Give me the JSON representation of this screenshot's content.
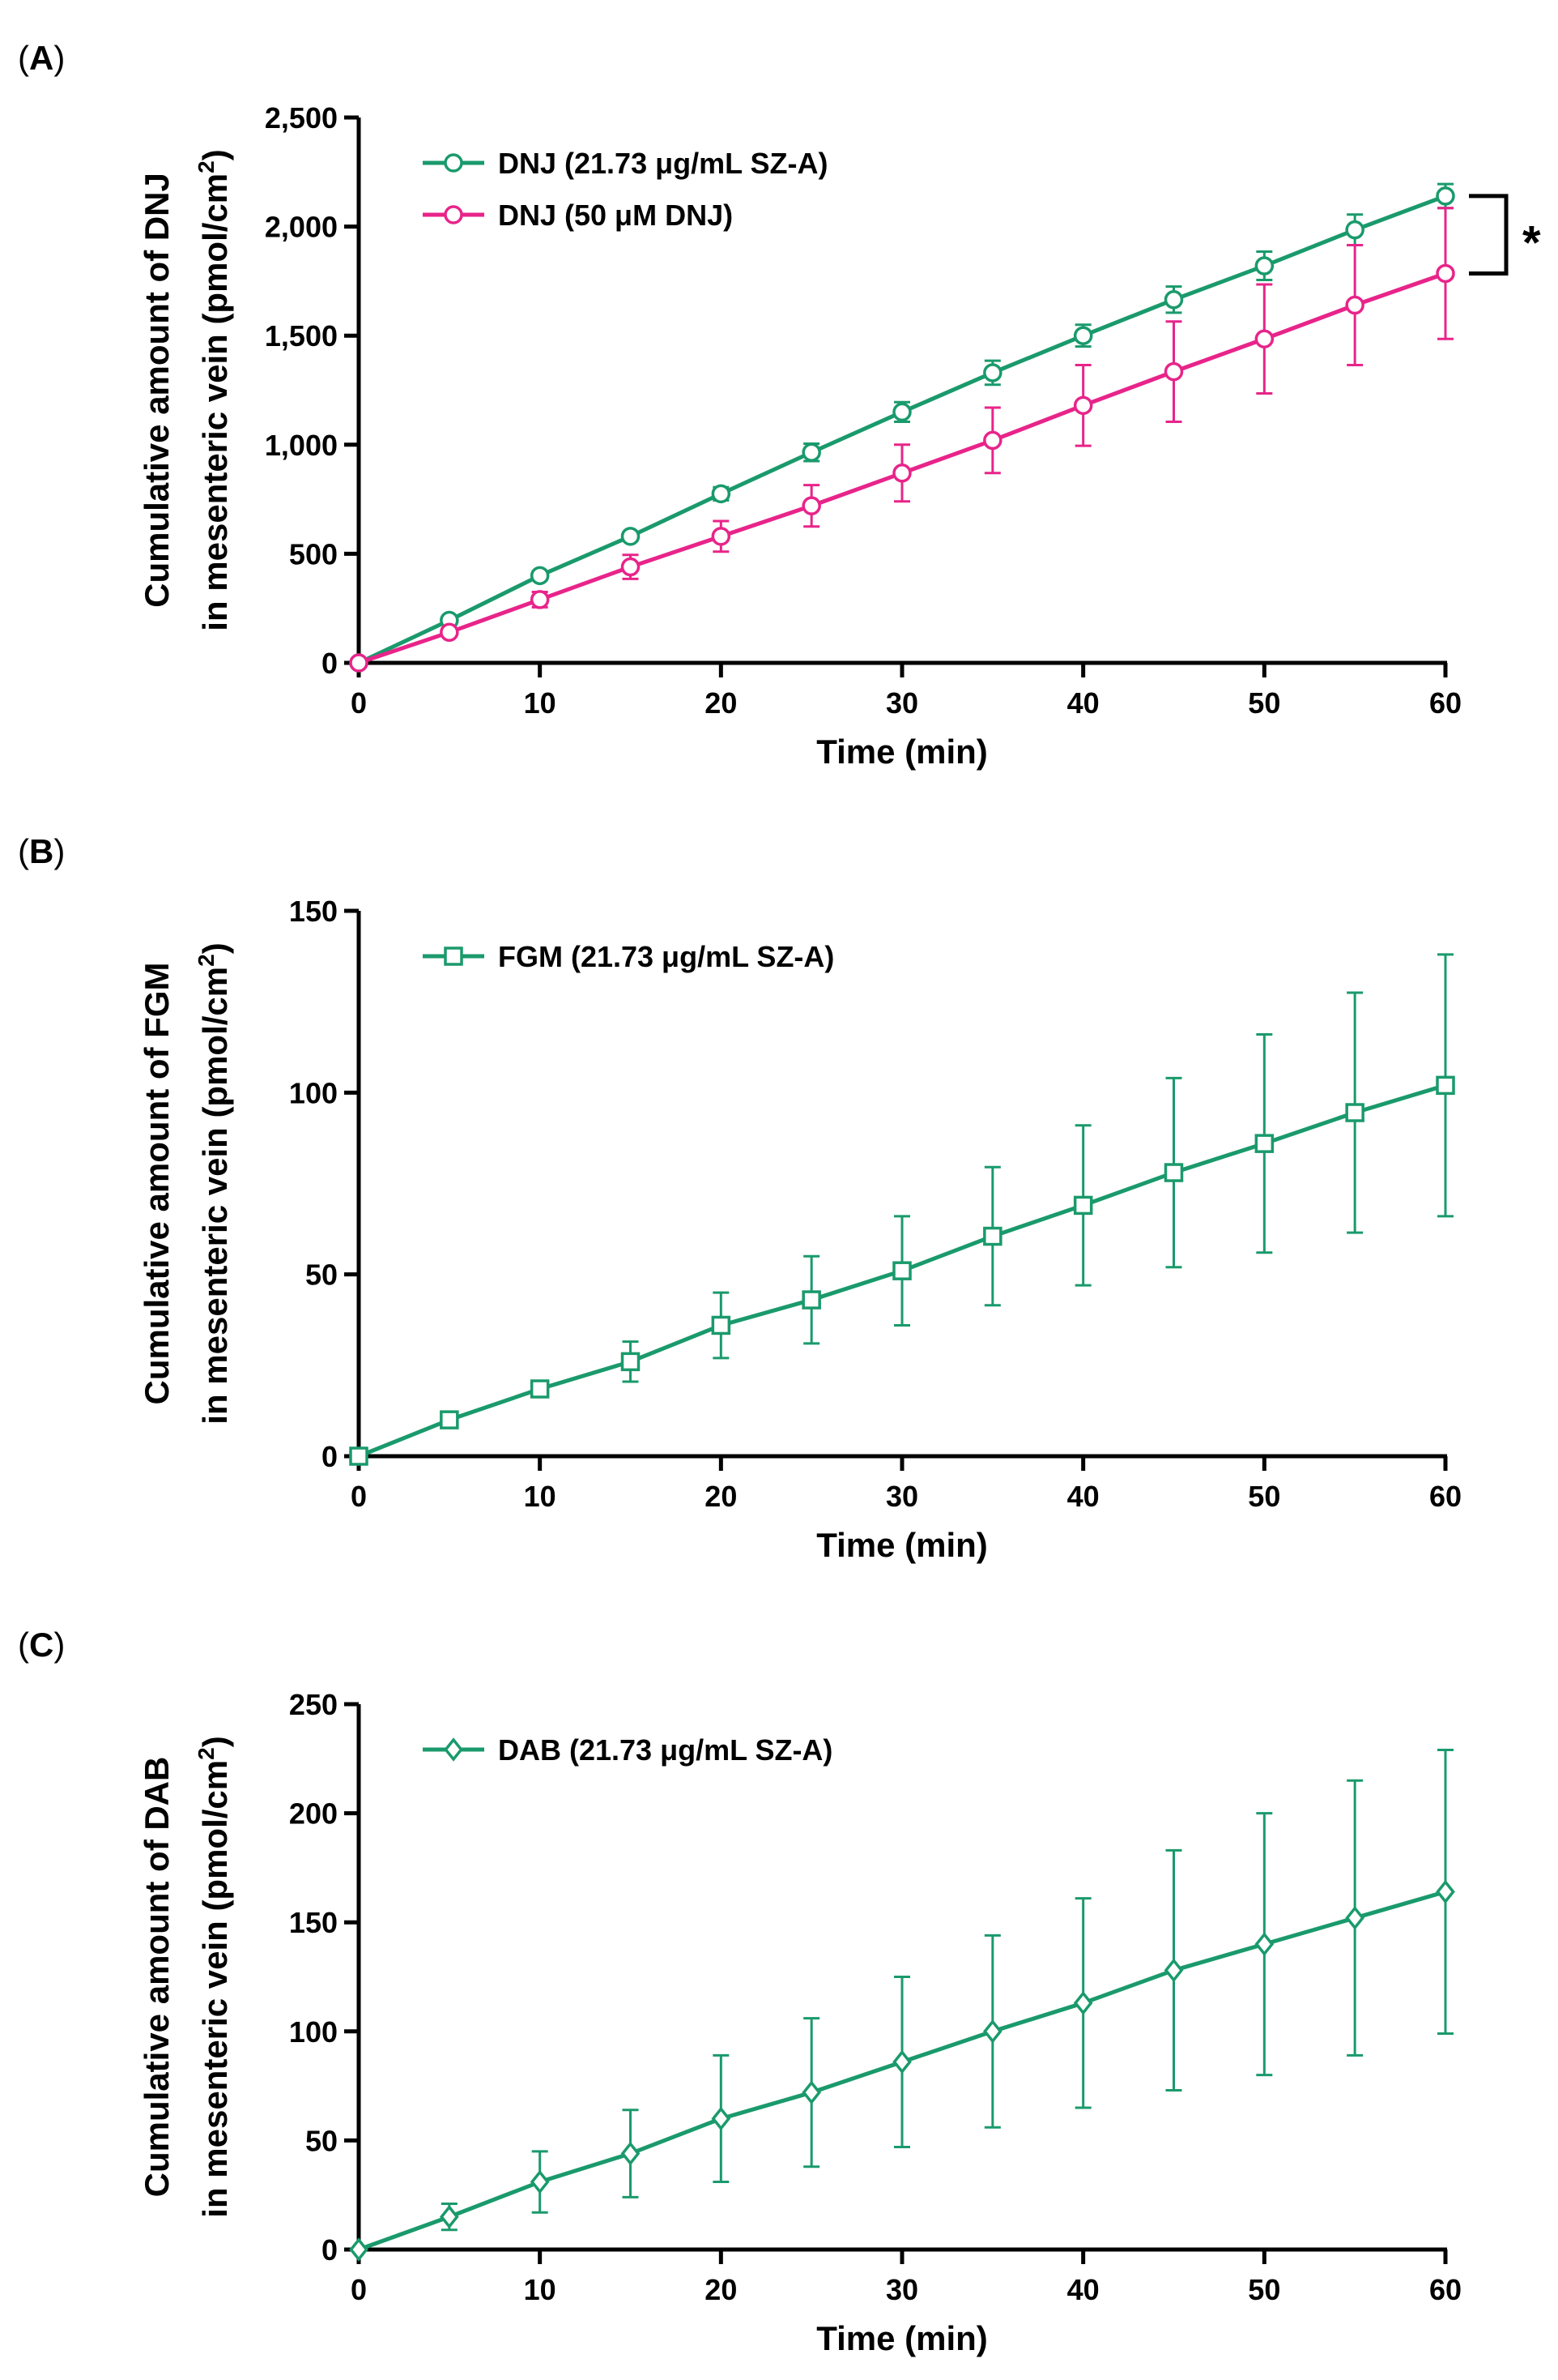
{
  "chart_data": [
    {
      "panel": "(A)",
      "panel_letter": "A",
      "type": "line",
      "x": [
        0,
        5,
        10,
        15,
        20,
        25,
        30,
        35,
        40,
        45,
        50,
        55,
        60
      ],
      "xlabel": "Time (min)",
      "ylabel_line1": "Cumulative amount of DNJ",
      "ylabel_line2": "in mesenteric vein (pmol/cm",
      "ylabel_sup": "2",
      "ylabel_close": ")",
      "xlim": [
        0,
        60
      ],
      "ylim": [
        0,
        2500
      ],
      "xticks": [
        0,
        10,
        20,
        30,
        40,
        50,
        60
      ],
      "xtick_labels": [
        "0",
        "10",
        "20",
        "30",
        "40",
        "50",
        "60"
      ],
      "yticks": [
        0,
        500,
        1000,
        1500,
        2000,
        2500
      ],
      "ytick_labels": [
        "0",
        "500",
        "1,000",
        "1,500",
        "2,000",
        "2,500"
      ],
      "annotation": "*",
      "series": [
        {
          "name": "DNJ (21.73 μg/mL SZ-A)",
          "color": "#1a9a6c",
          "marker": "circle",
          "values": [
            0,
            195,
            400,
            580,
            775,
            965,
            1150,
            1330,
            1500,
            1665,
            1820,
            1985,
            2140
          ],
          "errors": [
            0,
            15,
            20,
            20,
            30,
            40,
            45,
            55,
            50,
            60,
            65,
            70,
            55
          ]
        },
        {
          "name": "DNJ (50 μM DNJ)",
          "color": "#e8248a",
          "marker": "circle",
          "values": [
            0,
            140,
            290,
            440,
            580,
            720,
            870,
            1020,
            1180,
            1335,
            1485,
            1640,
            1785
          ],
          "errors": [
            0,
            15,
            35,
            55,
            70,
            95,
            130,
            150,
            185,
            230,
            250,
            275,
            300
          ]
        }
      ]
    },
    {
      "panel": "(B)",
      "panel_letter": "B",
      "type": "line",
      "x": [
        0,
        5,
        10,
        15,
        20,
        25,
        30,
        35,
        40,
        45,
        50,
        55,
        60
      ],
      "xlabel": "Time (min)",
      "ylabel_line1": "Cumulative amount of FGM",
      "ylabel_line2": "in mesenteric vein (pmol/cm",
      "ylabel_sup": "2",
      "ylabel_close": ")",
      "xlim": [
        0,
        60
      ],
      "ylim": [
        0,
        150
      ],
      "xticks": [
        0,
        10,
        20,
        30,
        40,
        50,
        60
      ],
      "xtick_labels": [
        "0",
        "10",
        "20",
        "30",
        "40",
        "50",
        "60"
      ],
      "yticks": [
        0,
        50,
        100,
        150
      ],
      "ytick_labels": [
        "0",
        "50",
        "100",
        "150"
      ],
      "series": [
        {
          "name": "FGM (21.73 μg/mL SZ-A)",
          "color": "#1a9a6c",
          "marker": "square",
          "values": [
            0,
            10,
            18.5,
            26,
            36,
            43,
            51,
            60.5,
            69,
            78,
            86,
            94.5,
            102
          ],
          "errors": [
            0,
            0.5,
            2,
            5.5,
            9,
            12,
            15,
            19,
            22,
            26,
            30,
            33,
            36
          ]
        }
      ]
    },
    {
      "panel": "(C)",
      "panel_letter": "C",
      "type": "line",
      "x": [
        0,
        5,
        10,
        15,
        20,
        25,
        30,
        35,
        40,
        45,
        50,
        55,
        60
      ],
      "xlabel": "Time (min)",
      "ylabel_line1": "Cumulative amount of DAB",
      "ylabel_line2": "in mesenteric vein (pmol/cm",
      "ylabel_sup": "2",
      "ylabel_close": ")",
      "xlim": [
        0,
        60
      ],
      "ylim": [
        0,
        250
      ],
      "xticks": [
        0,
        10,
        20,
        30,
        40,
        50,
        60
      ],
      "xtick_labels": [
        "0",
        "10",
        "20",
        "30",
        "40",
        "50",
        "60"
      ],
      "yticks": [
        0,
        50,
        100,
        150,
        200,
        250
      ],
      "ytick_labels": [
        "0",
        "50",
        "100",
        "150",
        "200",
        "250"
      ],
      "series": [
        {
          "name": "DAB (21.73 μg/mL SZ-A)",
          "color": "#1a9a6c",
          "marker": "diamond",
          "values": [
            0,
            15,
            31,
            44,
            60,
            72,
            86,
            100,
            113,
            128,
            140,
            152,
            164
          ],
          "errors": [
            0,
            6,
            14,
            20,
            29,
            34,
            39,
            44,
            48,
            55,
            60,
            63,
            65
          ]
        }
      ]
    }
  ]
}
